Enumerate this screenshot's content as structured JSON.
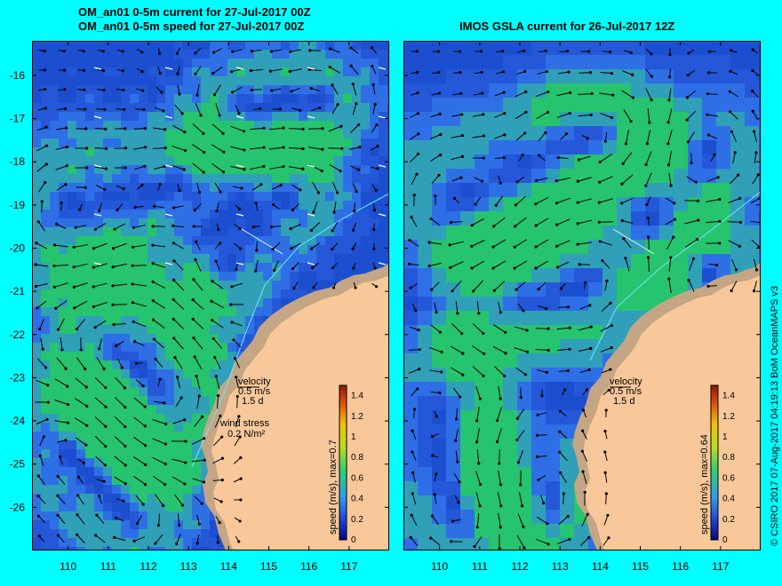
{
  "colors": {
    "background": "#00ffff",
    "ocean_deep": "#1c4fd0",
    "ocean_mid": "#2e6fe6",
    "ocean_fast": "#26c46e",
    "land": "#f8c89a",
    "shelf": "#c4a584",
    "coastline_track": "#6fe8ff"
  },
  "left_panel": {
    "title_line1": "OM_an01 0-5m current for 27-Jul-2017 00Z",
    "title_line2": "OM_an01 0-5m speed for 27-Jul-2017 00Z",
    "legend_velocity": "velocity",
    "legend_velocity_value": "0.5 m/s",
    "legend_velocity_days": "1.5 d",
    "legend_wind": "wind stress",
    "legend_wind_value": "0.2 N/m²",
    "colorbar_label": "speed (m/s), max=0.7"
  },
  "right_panel": {
    "title": "IMOS GSLA current for 26-Jul-2017 12Z",
    "legend_velocity": "velocity",
    "legend_velocity_value": "0.5 m/s",
    "legend_velocity_days": "1.5 d",
    "colorbar_label": "speed (m/s), max=0.64"
  },
  "axes": {
    "lon_ticks": [
      "110",
      "111",
      "112",
      "113",
      "114",
      "115",
      "116",
      "117"
    ],
    "lat_ticks": [
      "-16",
      "-17",
      "-18",
      "-19",
      "-20",
      "-21",
      "-22",
      "-23",
      "-24",
      "-25",
      "-26"
    ],
    "lon_range": [
      109.1,
      118
    ],
    "lat_range": [
      -27,
      -15.2
    ]
  },
  "colorbar": {
    "ticks": [
      "1.4",
      "1.2",
      "1",
      "0.8",
      "0.6",
      "0.4",
      "0.2",
      "0"
    ],
    "range": [
      0,
      1.5
    ]
  },
  "credit": "© CSIRO 2017  07-Aug-2017 04:19:13 BoM OceanMAPS v3"
}
